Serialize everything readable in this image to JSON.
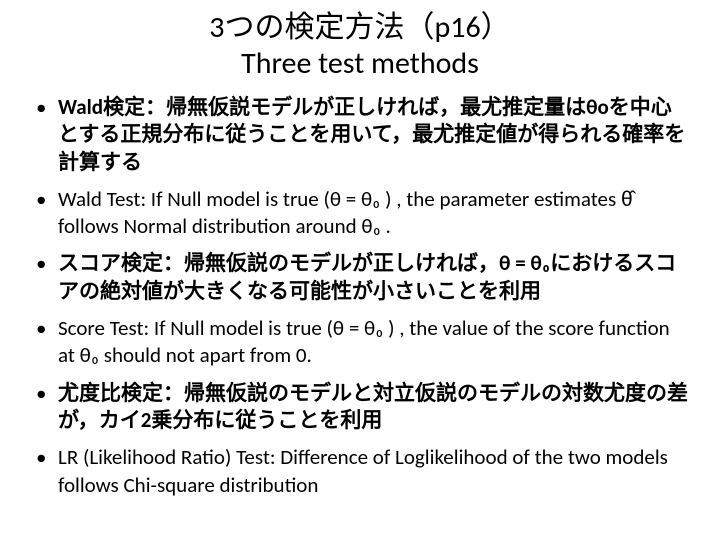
{
  "title": {
    "jp": "3つの検定方法（p16）",
    "en": "Three test methods"
  },
  "items": [
    {
      "class": "jp-bold",
      "text": "Wald検定：帰無仮説モデルが正しければ，最尤推定量はθoを中心とする正規分布に従うことを用いて，最尤推定値が得られる確率を計算する"
    },
    {
      "class": "en-text",
      "text": "Wald Test: If Null model is true (θ = θ₀ ) , the parameter estimates θ̂ follows Normal distribution around θ₀ ."
    },
    {
      "class": "jp-bold",
      "text": "スコア検定：帰無仮説のモデルが正しければ，θ = θ₀におけるスコアの絶対値が大きくなる可能性が小さいことを利用"
    },
    {
      "class": "en-text",
      "text": "Score Test: If Null model is true (θ = θ₀ ) , the value of the score function at θ₀  should not apart from 0."
    },
    {
      "class": "jp-bold",
      "text": "尤度比検定：帰無仮説のモデルと対立仮説のモデルの対数尤度の差が，カイ2乗分布に従うことを利用"
    },
    {
      "class": "en-text",
      "text": "LR (Likelihood Ratio) Test: Difference of Loglikelihood of the two models follows Chi-square distribution"
    }
  ],
  "style": {
    "background": "#ffffff",
    "text_color": "#000000",
    "title_fontsize": 30,
    "body_fontsize": 21,
    "bullet_char": "•"
  }
}
